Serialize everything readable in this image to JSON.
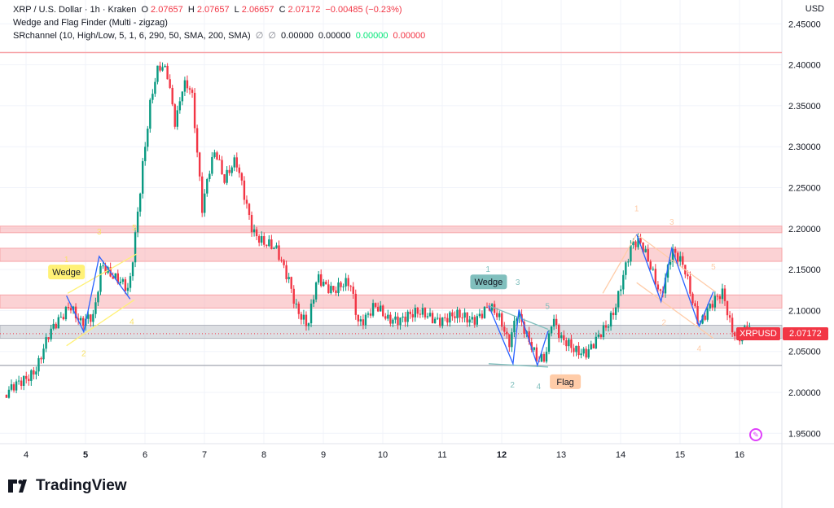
{
  "header": {
    "symbol": "XRP / U.S. Dollar · 1h · Kraken",
    "o_label": "O",
    "o": "2.07657",
    "h_label": "H",
    "h": "2.07657",
    "l_label": "L",
    "l": "2.06657",
    "c_label": "C",
    "c": "2.07172",
    "change": "−0.00485 (−0.23%)",
    "indicator1": "Wedge and Flag Finder (Multi - zigzag)",
    "indicator2": "SRchannel (10, High/Low, 5, 1, 6, 290, 50, SMA, 200, SMA)",
    "ind2_vals": [
      "∅",
      "∅",
      "0.00000",
      "0.00000"
    ],
    "ind2_green": "0.00000",
    "ind2_red": "0.00000"
  },
  "currency": "USD",
  "price_tag": {
    "symbol": "XRPUSD",
    "price": "2.07172"
  },
  "brand": "TradingView",
  "colors": {
    "up": "#089981",
    "down": "#f23645",
    "zone": "#f7a5a9",
    "gray_zone": "#b2b5be",
    "zigzag": "#2962ff",
    "wedge_yellow": "#fff176",
    "flag_teal": "#80bfbd",
    "flag_peach": "#ffcca8"
  },
  "chart_data": {
    "type": "candlestick",
    "interval": "1h",
    "ylim": [
      1.93,
      2.46
    ],
    "xlim": [
      3.62,
      16.78
    ],
    "y_ticks": [
      "1.95000",
      "2.00000",
      "2.05000",
      "2.10000",
      "2.15000",
      "2.20000",
      "2.25000",
      "2.30000",
      "2.35000",
      "2.40000",
      "2.45000"
    ],
    "x_ticks": [
      {
        "d": 4,
        "label": "4"
      },
      {
        "d": 5,
        "label": "5",
        "bold": true
      },
      {
        "d": 6,
        "label": "6"
      },
      {
        "d": 7,
        "label": "7"
      },
      {
        "d": 8,
        "label": "8"
      },
      {
        "d": 9,
        "label": "9"
      },
      {
        "d": 10,
        "label": "10"
      },
      {
        "d": 11,
        "label": "11"
      },
      {
        "d": 12,
        "label": "12",
        "bold": true
      },
      {
        "d": 13,
        "label": "13"
      },
      {
        "d": 14,
        "label": "14"
      },
      {
        "d": 15,
        "label": "15"
      },
      {
        "d": 16,
        "label": "16"
      }
    ],
    "price_path": [
      [
        3.67,
        1.997
      ],
      [
        3.84,
        2.007
      ],
      [
        4.18,
        2.032
      ],
      [
        4.38,
        2.067
      ],
      [
        4.66,
        2.101
      ],
      [
        4.73,
        2.111
      ],
      [
        4.93,
        2.082
      ],
      [
        5.14,
        2.091
      ],
      [
        5.27,
        2.161
      ],
      [
        5.48,
        2.141
      ],
      [
        5.73,
        2.121
      ],
      [
        5.82,
        2.181
      ],
      [
        5.96,
        2.28
      ],
      [
        6.1,
        2.36
      ],
      [
        6.23,
        2.395
      ],
      [
        6.37,
        2.39
      ],
      [
        6.51,
        2.33
      ],
      [
        6.64,
        2.38
      ],
      [
        6.78,
        2.37
      ],
      [
        6.89,
        2.28
      ],
      [
        6.96,
        2.221
      ],
      [
        7.1,
        2.28
      ],
      [
        7.19,
        2.3
      ],
      [
        7.33,
        2.26
      ],
      [
        7.53,
        2.28
      ],
      [
        7.67,
        2.241
      ],
      [
        7.81,
        2.201
      ],
      [
        8.01,
        2.181
      ],
      [
        8.22,
        2.171
      ],
      [
        8.42,
        2.141
      ],
      [
        8.56,
        2.101
      ],
      [
        8.74,
        2.077
      ],
      [
        8.9,
        2.141
      ],
      [
        9.18,
        2.126
      ],
      [
        9.45,
        2.131
      ],
      [
        9.59,
        2.086
      ],
      [
        9.86,
        2.106
      ],
      [
        10.07,
        2.086
      ],
      [
        10.41,
        2.096
      ],
      [
        10.96,
        2.091
      ],
      [
        11.51,
        2.091
      ],
      [
        11.78,
        2.103
      ],
      [
        11.99,
        2.086
      ],
      [
        12.12,
        2.062
      ],
      [
        12.26,
        2.101
      ],
      [
        12.44,
        2.062
      ],
      [
        12.6,
        2.037
      ],
      [
        12.74,
        2.047
      ],
      [
        12.85,
        2.096
      ],
      [
        13.01,
        2.062
      ],
      [
        13.22,
        2.05
      ],
      [
        13.42,
        2.052
      ],
      [
        13.77,
        2.077
      ],
      [
        13.9,
        2.101
      ],
      [
        14.04,
        2.146
      ],
      [
        14.18,
        2.181
      ],
      [
        14.32,
        2.181
      ],
      [
        14.52,
        2.151
      ],
      [
        14.68,
        2.121
      ],
      [
        14.86,
        2.171
      ],
      [
        15.07,
        2.151
      ],
      [
        15.32,
        2.086
      ],
      [
        15.48,
        2.101
      ],
      [
        15.73,
        2.121
      ],
      [
        15.82,
        2.091
      ],
      [
        15.96,
        2.067
      ],
      [
        16.1,
        2.077
      ],
      [
        16.19,
        2.072
      ]
    ],
    "last_price": 2.07172,
    "zones": [
      {
        "from": 2.195,
        "to": 2.203,
        "color": "pink"
      },
      {
        "from": 2.16,
        "to": 2.176,
        "color": "pink"
      },
      {
        "from": 2.103,
        "to": 2.119,
        "color": "pink"
      },
      {
        "from": 2.066,
        "to": 2.082,
        "color": "gray"
      }
    ],
    "levels": [
      {
        "price": 2.415,
        "color": "#f7a5a9"
      },
      {
        "price": 2.033,
        "color": "#b2b5be"
      }
    ],
    "patterns": [
      {
        "label": "Wedge",
        "color": "#fff176",
        "text_color": "#131722",
        "label_at": [
          4.68,
          2.138
        ],
        "zigzag": [
          [
            4.68,
            2.118
          ],
          [
            4.97,
            2.074
          ],
          [
            5.23,
            2.166
          ],
          [
            5.75,
            2.114
          ]
        ],
        "lines": [
          [
            [
              4.7,
              2.121
            ],
            [
              5.86,
              2.169
            ]
          ],
          [
            [
              4.68,
              2.057
            ],
            [
              5.82,
              2.113
            ]
          ]
        ],
        "numbers": [
          {
            "t": "1",
            "p": [
              4.68,
              2.148
            ]
          },
          {
            "t": "2",
            "p": [
              4.97,
              2.044
            ]
          },
          {
            "t": "3",
            "p": [
              5.23,
              2.193
            ]
          },
          {
            "t": "4",
            "p": [
              5.78,
              2.083
            ]
          },
          {
            "t": "5",
            "p": [
              5.82,
              2.198
            ]
          }
        ]
      },
      {
        "label": "Wedge",
        "color": "#80bfbd",
        "text_color": "#131722",
        "label_at": [
          11.78,
          2.126
        ],
        "label2": "Flag",
        "label2_color": "#ffcca8",
        "label2_at": [
          13.07,
          2.022
        ],
        "zigzag": [
          [
            11.78,
            2.106
          ],
          [
            12.19,
            2.035
          ],
          [
            12.29,
            2.101
          ],
          [
            12.6,
            2.033
          ],
          [
            12.78,
            2.075
          ]
        ],
        "lines": [
          [
            [
              11.78,
              2.106
            ],
            [
              12.78,
              2.077
            ]
          ],
          [
            [
              11.78,
              2.035
            ],
            [
              12.78,
              2.031
            ]
          ]
        ],
        "numbers": [
          {
            "t": "1",
            "p": [
              11.77,
              2.135
            ]
          },
          {
            "t": "3",
            "p": [
              12.27,
              2.131
            ]
          },
          {
            "t": "5",
            "p": [
              12.77,
              2.102
            ]
          },
          {
            "t": "2",
            "p": [
              12.18,
              2.006
            ]
          },
          {
            "t": "4",
            "p": [
              12.62,
              2.004
            ]
          }
        ]
      },
      {
        "color": "#ffcca8",
        "zigzag": [
          [
            14.27,
            2.193
          ],
          [
            14.68,
            2.111
          ],
          [
            14.86,
            2.176
          ],
          [
            15.32,
            2.081
          ],
          [
            15.56,
            2.123
          ]
        ],
        "lines": [
          [
            [
              13.7,
              2.121
            ],
            [
              14.27,
              2.193
            ]
          ],
          [
            [
              14.27,
              2.193
            ],
            [
              15.59,
              2.123
            ]
          ],
          [
            [
              14.27,
              2.134
            ],
            [
              15.56,
              2.066
            ]
          ]
        ],
        "numbers": [
          {
            "t": "1",
            "p": [
              14.27,
              2.221
            ]
          },
          {
            "t": "3",
            "p": [
              14.86,
              2.205
            ]
          },
          {
            "t": "5",
            "p": [
              15.56,
              2.15
            ]
          },
          {
            "t": "2",
            "p": [
              14.73,
              2.082
            ]
          },
          {
            "t": "4",
            "p": [
              15.32,
              2.05
            ]
          }
        ]
      }
    ]
  }
}
